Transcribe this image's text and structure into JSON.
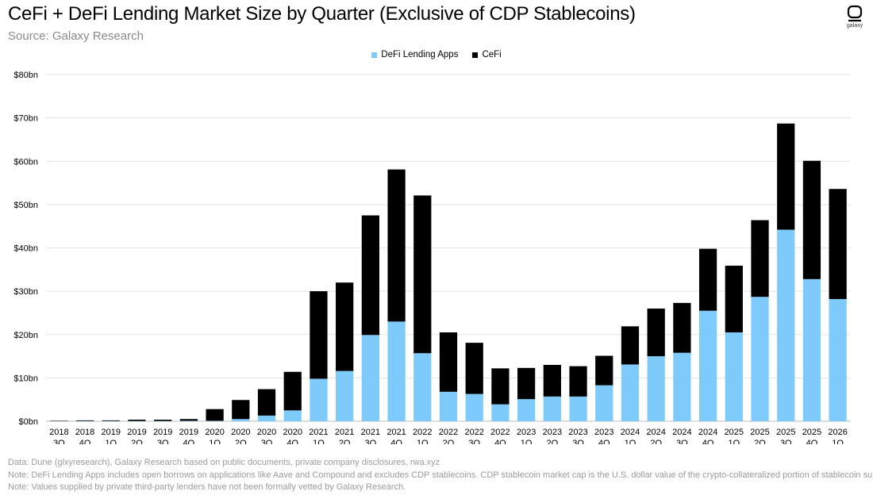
{
  "header": {
    "title": "CeFi + DeFi Lending Market Size by Quarter (Exclusive of CDP Stablecoins)",
    "subtitle": "Source: Galaxy Research",
    "logo_text": "galaxy"
  },
  "notes": [
    "Data: Dune (glxyresearch), Galaxy Research based on public documents, private company disclosures, rwa.xyz",
    "Note: DeFi Lending Apps includes open borrows on applications like Aave and Compound and excludes CDP stablecoins. CDP stablecoin market cap is the U.S. dollar value of the crypto-collateralized portion of stablecoin supply.",
    "Note: Values supplied by private third-party lenders have not been formally vetted  by Galaxy Research."
  ],
  "chart_data": {
    "type": "bar",
    "stacked": true,
    "title": "CeFi + DeFi Lending Market Size by Quarter (Exclusive of CDP Stablecoins)",
    "xlabel": "",
    "ylabel": "",
    "ylim": [
      0,
      80
    ],
    "yticks": [
      0,
      10,
      20,
      30,
      40,
      50,
      60,
      70,
      80
    ],
    "ytick_labels": [
      "$0bn",
      "$10bn",
      "$20bn",
      "$30bn",
      "$40bn",
      "$50bn",
      "$60bn",
      "$70bn",
      "$80bn"
    ],
    "grid": true,
    "legend_position": "top-center",
    "categories": [
      [
        "2018",
        "3Q"
      ],
      [
        "2018",
        "4Q"
      ],
      [
        "2019",
        "1Q"
      ],
      [
        "2019",
        "2Q"
      ],
      [
        "2019",
        "3Q"
      ],
      [
        "2019",
        "4Q"
      ],
      [
        "2020",
        "1Q"
      ],
      [
        "2020",
        "2Q"
      ],
      [
        "2020",
        "3Q"
      ],
      [
        "2020",
        "4Q"
      ],
      [
        "2021",
        "1Q"
      ],
      [
        "2021",
        "2Q"
      ],
      [
        "2021",
        "3Q"
      ],
      [
        "2021",
        "4Q"
      ],
      [
        "2022",
        "1Q"
      ],
      [
        "2022",
        "2Q"
      ],
      [
        "2022",
        "3Q"
      ],
      [
        "2022",
        "4Q"
      ],
      [
        "2023",
        "1Q"
      ],
      [
        "2023",
        "2Q"
      ],
      [
        "2023",
        "3Q"
      ],
      [
        "2023",
        "4Q"
      ],
      [
        "2024",
        "1Q"
      ],
      [
        "2024",
        "2Q"
      ],
      [
        "2024",
        "3Q"
      ],
      [
        "2024",
        "4Q"
      ],
      [
        "2025",
        "1Q"
      ],
      [
        "2025",
        "2Q"
      ],
      [
        "2025",
        "3Q"
      ],
      [
        "2025",
        "4Q"
      ],
      [
        "2026",
        "1Q"
      ]
    ],
    "series": [
      {
        "name": "DeFi Lending Apps",
        "color": "#7ecbfb",
        "values": [
          0.05,
          0.05,
          0.05,
          0.05,
          0.05,
          0.1,
          0.1,
          0.5,
          1.3,
          2.5,
          9.8,
          11.6,
          19.9,
          23.0,
          15.7,
          6.8,
          6.3,
          3.9,
          5.1,
          5.7,
          5.7,
          8.3,
          13.1,
          15.0,
          15.8,
          25.5,
          20.5,
          28.7,
          44.2,
          32.8,
          28.2
        ]
      },
      {
        "name": "CeFi",
        "color": "#000000",
        "values": [
          0.05,
          0.15,
          0.15,
          0.3,
          0.3,
          0.4,
          2.7,
          4.4,
          6.1,
          8.9,
          20.2,
          20.4,
          27.6,
          35.1,
          36.4,
          13.7,
          11.8,
          8.3,
          7.2,
          7.3,
          7.0,
          6.8,
          8.8,
          11.0,
          11.5,
          14.3,
          15.4,
          17.7,
          24.5,
          27.3,
          25.4
        ]
      }
    ]
  }
}
